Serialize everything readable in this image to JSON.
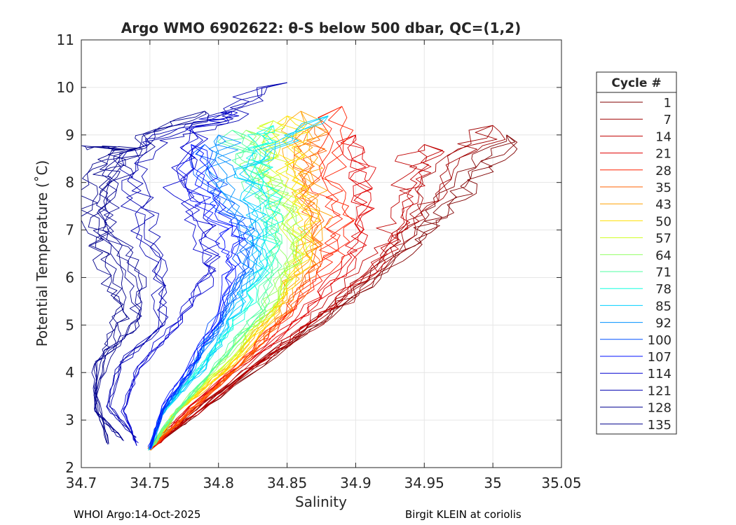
{
  "chart_data": {
    "type": "line",
    "title": "Argo WMO 6902622: θ-S below 500 dbar,  QC=(1,2)",
    "xlabel": "Salinity",
    "ylabel": "Potential Temperature (˚C)",
    "xlim": [
      34.7,
      35.05
    ],
    "ylim": [
      2,
      11
    ],
    "xticks": [
      34.7,
      34.75,
      34.8,
      34.85,
      34.9,
      34.95,
      35,
      35.05
    ],
    "xtick_labels": [
      "34.7",
      "34.75",
      "34.8",
      "34.85",
      "34.9",
      "34.95",
      "35",
      "35.05"
    ],
    "yticks": [
      2,
      3,
      4,
      5,
      6,
      7,
      8,
      9,
      10,
      11
    ],
    "ytick_labels": [
      "2",
      "3",
      "4",
      "5",
      "6",
      "7",
      "8",
      "9",
      "10",
      "11"
    ],
    "grid": true,
    "legend": {
      "title": "Cycle #",
      "placement": "outside-right",
      "entries": [
        {
          "label": "1",
          "color": "#800000"
        },
        {
          "label": "7",
          "color": "#a00000"
        },
        {
          "label": "14",
          "color": "#c00000"
        },
        {
          "label": "21",
          "color": "#e00000"
        },
        {
          "label": "28",
          "color": "#ff2000"
        },
        {
          "label": "35",
          "color": "#ff6000"
        },
        {
          "label": "43",
          "color": "#ffa000"
        },
        {
          "label": "50",
          "color": "#ffe000"
        },
        {
          "label": "57",
          "color": "#d0ff20"
        },
        {
          "label": "64",
          "color": "#90ff60"
        },
        {
          "label": "71",
          "color": "#50ffa0"
        },
        {
          "label": "78",
          "color": "#10ffe0"
        },
        {
          "label": "85",
          "color": "#00d0ff"
        },
        {
          "label": "92",
          "color": "#0090ff"
        },
        {
          "label": "100",
          "color": "#0050ff"
        },
        {
          "label": "107",
          "color": "#0010ff"
        },
        {
          "label": "114",
          "color": "#0000d0"
        },
        {
          "label": "121",
          "color": "#0000b0"
        },
        {
          "label": "128",
          "color": "#000090"
        },
        {
          "label": "135",
          "color": "#00008a"
        }
      ]
    },
    "series": [
      {
        "name": "1",
        "color": "#800000",
        "points": [
          [
            34.75,
            2.4
          ],
          [
            34.8,
            3.5
          ],
          [
            34.86,
            4.8
          ],
          [
            34.9,
            5.6
          ],
          [
            34.94,
            6.7
          ],
          [
            34.96,
            7.4
          ],
          [
            34.99,
            8.2
          ],
          [
            35.01,
            9.0
          ]
        ]
      },
      {
        "name": "7",
        "color": "#a00000",
        "points": [
          [
            34.75,
            2.4
          ],
          [
            34.79,
            3.4
          ],
          [
            34.85,
            4.6
          ],
          [
            34.89,
            5.5
          ],
          [
            34.93,
            6.6
          ],
          [
            34.95,
            7.5
          ],
          [
            34.97,
            8.4
          ],
          [
            35.0,
            9.2
          ]
        ]
      },
      {
        "name": "14",
        "color": "#c00000",
        "points": [
          [
            34.75,
            2.4
          ],
          [
            34.79,
            3.3
          ],
          [
            34.84,
            4.5
          ],
          [
            34.88,
            5.4
          ],
          [
            34.92,
            6.5
          ],
          [
            34.93,
            7.3
          ],
          [
            34.94,
            8.1
          ],
          [
            34.95,
            8.8
          ]
        ]
      },
      {
        "name": "21",
        "color": "#e00000",
        "points": [
          [
            34.75,
            2.4
          ],
          [
            34.78,
            3.3
          ],
          [
            34.83,
            4.4
          ],
          [
            34.87,
            5.4
          ],
          [
            34.9,
            6.4
          ],
          [
            34.91,
            7.3
          ],
          [
            34.91,
            8.2
          ],
          [
            34.9,
            9.0
          ]
        ]
      },
      {
        "name": "28",
        "color": "#ff2000",
        "points": [
          [
            34.75,
            2.4
          ],
          [
            34.78,
            3.2
          ],
          [
            34.82,
            4.3
          ],
          [
            34.85,
            5.2
          ],
          [
            34.88,
            6.3
          ],
          [
            34.89,
            7.2
          ],
          [
            34.88,
            8.1
          ],
          [
            34.89,
            9.6
          ]
        ]
      },
      {
        "name": "35",
        "color": "#ff6000",
        "points": [
          [
            34.75,
            2.4
          ],
          [
            34.78,
            3.2
          ],
          [
            34.82,
            4.3
          ],
          [
            34.85,
            5.3
          ],
          [
            34.87,
            6.2
          ],
          [
            34.87,
            7.2
          ],
          [
            34.86,
            8.2
          ],
          [
            34.87,
            9.2
          ]
        ]
      },
      {
        "name": "43",
        "color": "#ffa000",
        "points": [
          [
            34.75,
            2.4
          ],
          [
            34.77,
            3.2
          ],
          [
            34.81,
            4.2
          ],
          [
            34.84,
            5.2
          ],
          [
            34.86,
            6.3
          ],
          [
            34.87,
            7.3
          ],
          [
            34.86,
            8.3
          ],
          [
            34.86,
            9.5
          ]
        ]
      },
      {
        "name": "50",
        "color": "#ffe000",
        "points": [
          [
            34.75,
            2.4
          ],
          [
            34.77,
            3.2
          ],
          [
            34.81,
            4.2
          ],
          [
            34.84,
            5.3
          ],
          [
            34.86,
            6.4
          ],
          [
            34.86,
            7.4
          ],
          [
            34.85,
            8.4
          ],
          [
            34.85,
            9.4
          ]
        ]
      },
      {
        "name": "57",
        "color": "#d0ff20",
        "points": [
          [
            34.75,
            2.4
          ],
          [
            34.77,
            3.2
          ],
          [
            34.81,
            4.3
          ],
          [
            34.84,
            5.4
          ],
          [
            34.86,
            6.5
          ],
          [
            34.85,
            7.5
          ],
          [
            34.84,
            8.4
          ],
          [
            34.84,
            9.3
          ]
        ]
      },
      {
        "name": "64",
        "color": "#90ff60",
        "points": [
          [
            34.75,
            2.4
          ],
          [
            34.77,
            3.2
          ],
          [
            34.8,
            4.2
          ],
          [
            34.83,
            5.2
          ],
          [
            34.85,
            6.3
          ],
          [
            34.85,
            7.3
          ],
          [
            34.83,
            8.2
          ],
          [
            34.82,
            9.1
          ]
        ]
      },
      {
        "name": "71",
        "color": "#50ffa0",
        "points": [
          [
            34.75,
            2.4
          ],
          [
            34.77,
            3.2
          ],
          [
            34.8,
            4.2
          ],
          [
            34.83,
            5.3
          ],
          [
            34.84,
            6.4
          ],
          [
            34.84,
            7.4
          ],
          [
            34.82,
            8.3
          ],
          [
            34.81,
            9.1
          ]
        ]
      },
      {
        "name": "78",
        "color": "#10ffe0",
        "points": [
          [
            34.75,
            2.4
          ],
          [
            34.76,
            3.2
          ],
          [
            34.79,
            4.2
          ],
          [
            34.82,
            5.3
          ],
          [
            34.84,
            6.5
          ],
          [
            34.84,
            7.5
          ],
          [
            34.83,
            8.5
          ],
          [
            34.84,
            9.2
          ]
        ]
      },
      {
        "name": "85",
        "color": "#00d0ff",
        "points": [
          [
            34.75,
            2.4
          ],
          [
            34.76,
            3.2
          ],
          [
            34.79,
            4.1
          ],
          [
            34.81,
            5.1
          ],
          [
            34.83,
            6.2
          ],
          [
            34.83,
            7.3
          ],
          [
            34.82,
            8.3
          ],
          [
            34.88,
            9.4
          ]
        ]
      },
      {
        "name": "92",
        "color": "#0090ff",
        "points": [
          [
            34.75,
            2.4
          ],
          [
            34.76,
            3.2
          ],
          [
            34.78,
            4.1
          ],
          [
            34.8,
            5.0
          ],
          [
            34.82,
            6.0
          ],
          [
            34.82,
            7.0
          ],
          [
            34.8,
            8.0
          ],
          [
            34.8,
            9.0
          ]
        ]
      },
      {
        "name": "100",
        "color": "#0050ff",
        "points": [
          [
            34.75,
            2.4
          ],
          [
            34.76,
            3.2
          ],
          [
            34.78,
            4.0
          ],
          [
            34.8,
            5.0
          ],
          [
            34.82,
            6.1
          ],
          [
            34.82,
            7.0
          ],
          [
            34.8,
            7.8
          ],
          [
            34.79,
            8.8
          ]
        ]
      },
      {
        "name": "107",
        "color": "#0010ff",
        "points": [
          [
            34.75,
            2.4
          ],
          [
            34.76,
            3.3
          ],
          [
            34.78,
            4.1
          ],
          [
            34.8,
            5.1
          ],
          [
            34.81,
            6.2
          ],
          [
            34.81,
            6.9
          ],
          [
            34.79,
            7.8
          ],
          [
            34.78,
            8.8
          ]
        ]
      },
      {
        "name": "114",
        "color": "#0000d0",
        "points": [
          [
            34.74,
            2.5
          ],
          [
            34.73,
            3.2
          ],
          [
            34.74,
            4.1
          ],
          [
            34.77,
            5.1
          ],
          [
            34.79,
            6.0
          ],
          [
            34.79,
            6.9
          ],
          [
            34.77,
            7.9
          ],
          [
            34.78,
            9.1
          ],
          [
            34.81,
            9.5
          ]
        ]
      },
      {
        "name": "121",
        "color": "#0000b0",
        "points": [
          [
            34.74,
            2.6
          ],
          [
            34.72,
            3.3
          ],
          [
            34.73,
            4.2
          ],
          [
            34.76,
            5.0
          ],
          [
            34.76,
            6.0
          ],
          [
            34.75,
            7.0
          ],
          [
            34.74,
            8.0
          ],
          [
            34.75,
            8.8
          ],
          [
            34.8,
            9.3
          ],
          [
            34.85,
            10.1
          ]
        ]
      },
      {
        "name": "128",
        "color": "#000090",
        "points": [
          [
            34.73,
            2.6
          ],
          [
            34.71,
            3.2
          ],
          [
            34.71,
            4.2
          ],
          [
            34.74,
            5.0
          ],
          [
            34.74,
            6.0
          ],
          [
            34.72,
            7.0
          ],
          [
            34.72,
            8.0
          ],
          [
            34.74,
            8.9
          ],
          [
            34.79,
            9.5
          ]
        ]
      },
      {
        "name": "135",
        "color": "#00008a",
        "points": [
          [
            34.72,
            2.5
          ],
          [
            34.71,
            3.5
          ],
          [
            34.72,
            4.5
          ],
          [
            34.73,
            5.3
          ],
          [
            34.72,
            6.2
          ],
          [
            34.71,
            7.1
          ],
          [
            34.71,
            8.1
          ],
          [
            34.73,
            8.7
          ],
          [
            34.71,
            8.75
          ]
        ]
      }
    ]
  },
  "footer": {
    "left": "WHOI Argo:14-Oct-2025",
    "right": "Birgit KLEIN at coriolis"
  }
}
